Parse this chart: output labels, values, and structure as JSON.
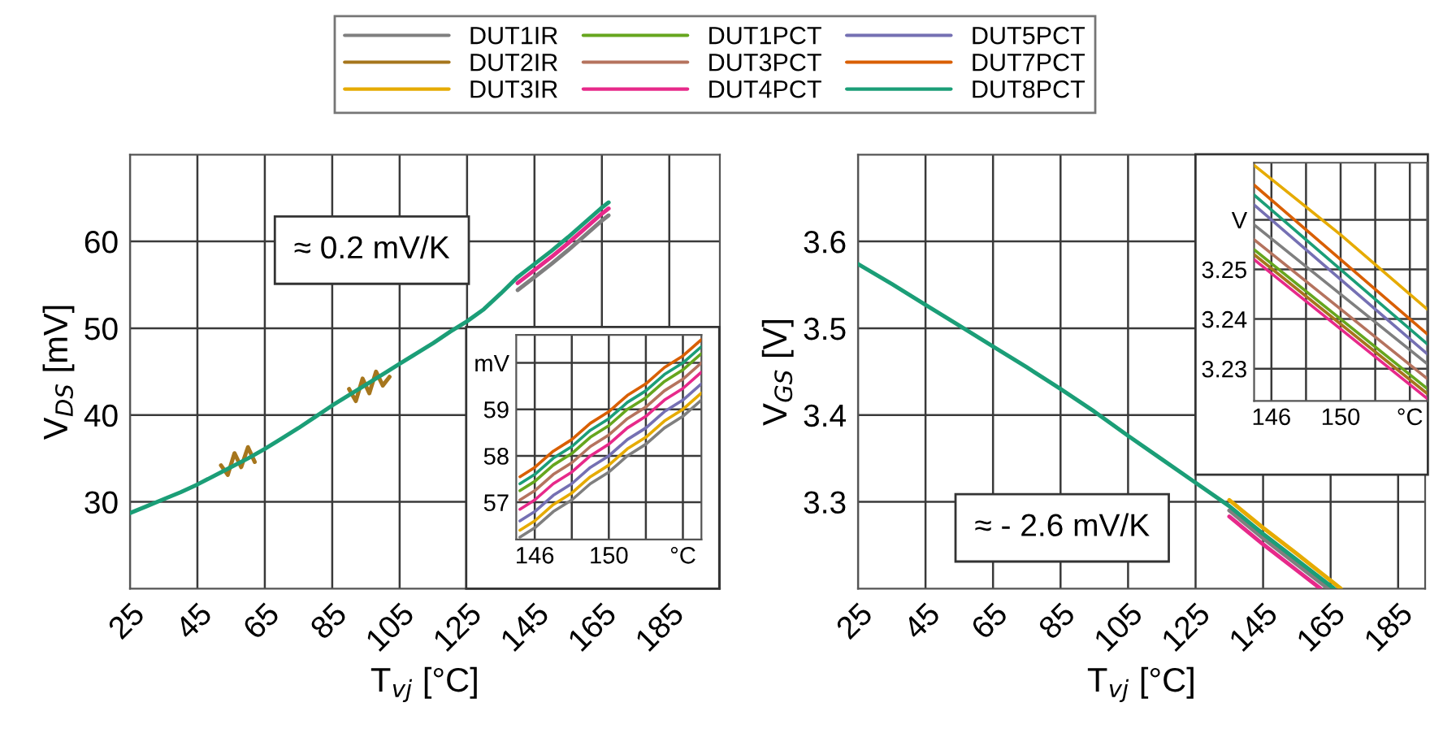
{
  "chart_data": [
    {
      "type": "line",
      "xlabel": "T$_{vj}$ [°C]",
      "ylabel": "V$_{DS}$ [mV]",
      "xlim": [
        25,
        200
      ],
      "ylim": [
        20,
        70
      ],
      "xticks": [
        25,
        45,
        65,
        85,
        105,
        125,
        145,
        165,
        185
      ],
      "yticks": [
        30,
        40,
        50,
        60
      ],
      "grid": true,
      "annotations": [
        "≈ 0.2 mV/K"
      ],
      "x": [
        25,
        30,
        35,
        40,
        45,
        50,
        55,
        60,
        65,
        70,
        75,
        80,
        85,
        90,
        95,
        100,
        105,
        110,
        115,
        120,
        125,
        130,
        135,
        140,
        145,
        150,
        155,
        160,
        165,
        167
      ],
      "series": [
        {
          "color": "#7f7f7f",
          "x": [
            140,
            145,
            150,
            155,
            160,
            165,
            167
          ],
          "values": [
            54.4,
            55.9,
            57.4,
            59.0,
            60.7,
            62.4,
            63.0
          ]
        },
        {
          "color": "#a6761d",
          "x": [
            52,
            54,
            56,
            58,
            60,
            62,
            75,
            90,
            92,
            94,
            96,
            98,
            100,
            102
          ],
          "values": [
            34.2,
            33.1,
            35.6,
            34.0,
            36.3,
            34.6,
            null,
            43.0,
            41.6,
            44.2,
            42.5,
            45.0,
            43.4,
            44.4
          ]
        },
        {
          "color": "#e7298a",
          "x": [
            140,
            145,
            150,
            155,
            160,
            165,
            167
          ],
          "values": [
            55.2,
            56.7,
            58.2,
            59.8,
            61.5,
            63.2,
            63.8
          ]
        },
        {
          "color": "#1b9e77",
          "values": [
            28.7,
            29.5,
            30.3,
            31.1,
            32.0,
            33.0,
            34.0,
            35.0,
            36.1,
            37.3,
            38.5,
            39.8,
            41.1,
            42.3,
            43.5,
            44.7,
            45.9,
            47.1,
            48.3,
            49.6,
            50.8,
            52.2,
            54.0,
            55.9,
            57.4,
            58.9,
            60.5,
            62.2,
            63.9,
            64.5
          ]
        }
      ]
    },
    {
      "type": "line",
      "xlim": [
        145,
        155
      ],
      "ylim": [
        56.2,
        60.6
      ],
      "xticks": [
        146,
        {
          "value": 148,
          "label": null
        },
        150,
        {
          "value": 152,
          "label": null
        },
        {
          "value": 154,
          "label": "°C"
        }
      ],
      "yticks": [
        57,
        58,
        59,
        {
          "value": 60,
          "label": "mV"
        }
      ],
      "grid": true,
      "x": [
        145.2,
        146,
        147,
        148,
        149,
        150,
        151,
        152,
        153,
        154,
        155
      ],
      "series": [
        {
          "color": "#7f7f7f",
          "values": [
            56.25,
            56.45,
            56.8,
            57.05,
            57.4,
            57.65,
            58.0,
            58.25,
            58.6,
            58.85,
            59.2
          ]
        },
        {
          "color": "#e6ab02",
          "values": [
            56.4,
            56.6,
            56.95,
            57.2,
            57.55,
            57.8,
            58.15,
            58.4,
            58.75,
            59.0,
            59.35
          ]
        },
        {
          "color": "#66a61e",
          "values": [
            57.25,
            57.45,
            57.8,
            58.05,
            58.4,
            58.65,
            59.0,
            59.25,
            59.6,
            59.85,
            60.2
          ]
        },
        {
          "color": "#b5735e",
          "values": [
            57.05,
            57.25,
            57.6,
            57.85,
            58.2,
            58.45,
            58.8,
            59.05,
            59.4,
            59.65,
            60.0
          ]
        },
        {
          "color": "#e7298a",
          "values": [
            56.85,
            57.05,
            57.4,
            57.65,
            58.0,
            58.25,
            58.6,
            58.85,
            59.2,
            59.45,
            59.8
          ]
        },
        {
          "color": "#7570b3",
          "values": [
            56.6,
            56.8,
            57.15,
            57.4,
            57.75,
            58.0,
            58.35,
            58.6,
            58.95,
            59.2,
            59.55
          ]
        },
        {
          "color": "#d95f02",
          "values": [
            57.55,
            57.75,
            58.1,
            58.35,
            58.7,
            58.95,
            59.3,
            59.55,
            59.9,
            60.15,
            60.5
          ]
        },
        {
          "color": "#1b9e77",
          "values": [
            57.4,
            57.6,
            57.95,
            58.2,
            58.55,
            58.8,
            59.15,
            59.4,
            59.75,
            60.0,
            60.35
          ]
        }
      ]
    },
    {
      "type": "line",
      "xlabel": "T$_{vj}$ [°C]",
      "ylabel": "V$_{GS}$ [V]",
      "xlim": [
        25,
        193
      ],
      "ylim": [
        3.2,
        3.7
      ],
      "xticks": [
        25,
        45,
        65,
        85,
        105,
        125,
        145,
        165,
        185
      ],
      "yticks": [
        3.3,
        3.4,
        3.5,
        3.6
      ],
      "grid": true,
      "annotations": [
        "≈ - 2.6 mV/K"
      ],
      "series": [
        {
          "color": "#e6ab02",
          "x": [
            135,
            145,
            155,
            168
          ],
          "values": [
            3.302,
            3.27,
            3.24,
            3.2
          ]
        },
        {
          "color": "#7f7f7f",
          "x": [
            135,
            145,
            155,
            164.3
          ],
          "values": [
            3.29,
            3.258,
            3.228,
            3.2
          ]
        },
        {
          "color": "#e7298a",
          "x": [
            135,
            145,
            155,
            162
          ],
          "values": [
            3.283,
            3.251,
            3.221,
            3.2
          ]
        },
        {
          "color": "#1b9e77",
          "x": [
            25,
            35,
            45,
            55,
            65,
            75,
            85,
            95,
            105,
            115,
            125,
            135,
            145,
            155,
            166
          ],
          "values": [
            3.574,
            3.551,
            3.527,
            3.503,
            3.479,
            3.455,
            3.43,
            3.404,
            3.376,
            3.349,
            3.322,
            3.295,
            3.263,
            3.233,
            3.2
          ]
        }
      ]
    },
    {
      "type": "line",
      "xlim": [
        145,
        155
      ],
      "ylim": [
        3.2235,
        3.2715
      ],
      "xticks": [
        146,
        {
          "value": 148,
          "label": null
        },
        150,
        {
          "value": 152,
          "label": null
        },
        {
          "value": 154,
          "label": "°C"
        }
      ],
      "yticks": [
        3.23,
        3.24,
        3.25,
        {
          "value": 3.26,
          "label": "V"
        }
      ],
      "grid": true,
      "legend": "top",
      "x": [
        145,
        150,
        155
      ],
      "series": [
        {
          "name": "DUT1IR",
          "color": "#7f7f7f",
          "values": [
            3.259,
            3.245,
            3.231
          ]
        },
        {
          "name": "DUT2IR",
          "color": "#a6761d",
          "values": [
            3.253,
            3.239,
            3.225
          ]
        },
        {
          "name": "DUT3IR",
          "color": "#e6ab02",
          "values": [
            3.271,
            3.257,
            3.242
          ]
        },
        {
          "name": "DUT1PCT",
          "color": "#66a61e",
          "values": [
            3.254,
            3.24,
            3.226
          ]
        },
        {
          "name": "DUT3PCT",
          "color": "#b5735e",
          "values": [
            3.256,
            3.242,
            3.228
          ]
        },
        {
          "name": "DUT4PCT",
          "color": "#e7298a",
          "values": [
            3.252,
            3.238,
            3.224
          ]
        },
        {
          "name": "DUT5PCT",
          "color": "#7570b3",
          "values": [
            3.263,
            3.248,
            3.233
          ]
        },
        {
          "name": "DUT7PCT",
          "color": "#d95f02",
          "values": [
            3.267,
            3.252,
            3.237
          ]
        },
        {
          "name": "DUT8PCT",
          "color": "#1b9e77",
          "values": [
            3.265,
            3.25,
            3.235
          ]
        }
      ]
    }
  ]
}
